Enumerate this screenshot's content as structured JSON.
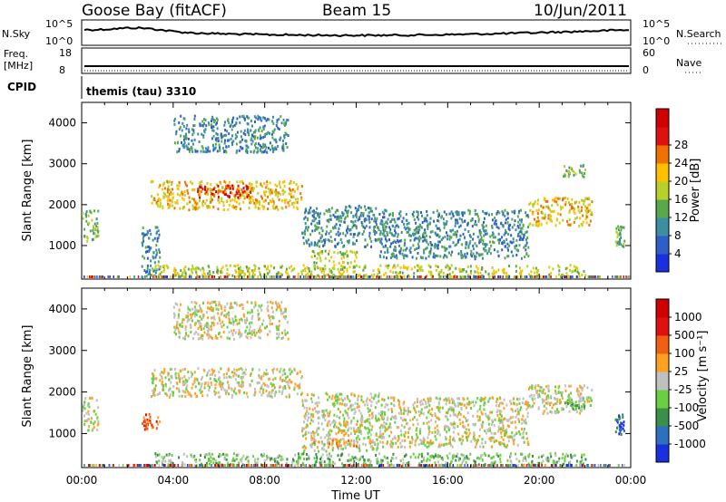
{
  "header": {
    "station": "Goose Bay (fitACF)",
    "beam": "Beam 15",
    "date": "10/Jun/2011"
  },
  "top_panels": {
    "nsky_label": "N.Sky",
    "nsky_ticks": [
      "10^5",
      "10^0"
    ],
    "nsearch_label": "N.Search",
    "nsearch_ticks": [
      "10^5",
      "10^0"
    ],
    "freq_label_line1": "Freq.",
    "freq_label_line2": "[MHz]",
    "freq_ticks": [
      "18",
      "8"
    ],
    "nave_label": "Nave",
    "nave_ticks": [
      "60",
      "0"
    ],
    "cpid_label": "CPID",
    "cpid_text": "themis (tau) 3310"
  },
  "chart_data": [
    {
      "type": "heatmap",
      "name": "power-panel",
      "ylabel": "Slant Range [km]",
      "xlabel": "Time UT",
      "x_ticks": [
        "00:00",
        "04:00",
        "08:00",
        "12:00",
        "16:00",
        "20:00",
        "00:00"
      ],
      "xlim_hours": [
        0,
        24
      ],
      "ylim_km": [
        180,
        4500
      ],
      "y_ticks": [
        1000,
        2000,
        3000,
        4000
      ],
      "colorbar_label": "Power [dB]",
      "colorbar_ticks": [
        "4",
        "8",
        "12",
        "16",
        "20",
        "24",
        "28"
      ],
      "colorbar_colors": [
        "#1a2fe0",
        "#2e5fc8",
        "#3b8fa0",
        "#5aa84c",
        "#b7d12a",
        "#ffc000",
        "#f07000",
        "#e01010",
        "#d00000"
      ],
      "echo_regions": [
        {
          "t": [
            0.0,
            0.7
          ],
          "r": [
            1100,
            1900
          ],
          "level": 3
        },
        {
          "t": [
            2.6,
            3.4
          ],
          "r": [
            200,
            1500
          ],
          "level": 2
        },
        {
          "t": [
            3.0,
            9.6
          ],
          "r": [
            1900,
            2600
          ],
          "level": 5
        },
        {
          "t": [
            5.0,
            7.5
          ],
          "r": [
            2200,
            2500
          ],
          "level": 7
        },
        {
          "t": [
            4.0,
            9.0
          ],
          "r": [
            3300,
            4200
          ],
          "level": 2
        },
        {
          "t": [
            9.6,
            13.0
          ],
          "r": [
            1000,
            2000
          ],
          "level": 2
        },
        {
          "t": [
            10.0,
            12.0
          ],
          "r": [
            600,
            900
          ],
          "level": 4
        },
        {
          "t": [
            13.0,
            19.5
          ],
          "r": [
            700,
            1900
          ],
          "level": 2
        },
        {
          "t": [
            19.5,
            22.3
          ],
          "r": [
            1500,
            2200
          ],
          "level": 5
        },
        {
          "t": [
            21.0,
            22.0
          ],
          "r": [
            2700,
            3000
          ],
          "level": 3
        },
        {
          "t": [
            3.0,
            22.0
          ],
          "r": [
            250,
            550
          ],
          "level": 4
        },
        {
          "t": [
            23.3,
            23.7
          ],
          "r": [
            1000,
            1500
          ],
          "level": 3
        }
      ]
    },
    {
      "type": "heatmap",
      "name": "velocity-panel",
      "ylabel": "Slant Range [km]",
      "xlabel": "Time UT",
      "x_ticks": [
        "00:00",
        "04:00",
        "08:00",
        "12:00",
        "16:00",
        "20:00",
        "00:00"
      ],
      "xlim_hours": [
        0,
        24
      ],
      "ylim_km": [
        180,
        4500
      ],
      "y_ticks": [
        1000,
        2000,
        3000,
        4000
      ],
      "colorbar_label": "Velocity [m s⁻¹]",
      "colorbar_ticks": [
        "1000",
        "500",
        "100",
        "25",
        "-25",
        "-100",
        "-500",
        "-1000"
      ],
      "colorbar_colors": [
        "#1a2fe0",
        "#2e6fc0",
        "#3a8f4a",
        "#6ad040",
        "#c0c0c0",
        "#ffa020",
        "#f06010",
        "#e01010",
        "#d00000"
      ],
      "echo_regions": [
        {
          "t": [
            0.0,
            0.7
          ],
          "r": [
            1100,
            1900
          ],
          "level": 4
        },
        {
          "t": [
            2.6,
            3.4
          ],
          "r": [
            1100,
            1500
          ],
          "level": 6
        },
        {
          "t": [
            3.0,
            9.6
          ],
          "r": [
            1900,
            2600
          ],
          "level": 4
        },
        {
          "t": [
            4.0,
            9.0
          ],
          "r": [
            3300,
            4200
          ],
          "level": 4
        },
        {
          "t": [
            9.6,
            13.0
          ],
          "r": [
            600,
            2000
          ],
          "level": 4
        },
        {
          "t": [
            10.0,
            12.0
          ],
          "r": [
            700,
            900
          ],
          "level": 5
        },
        {
          "t": [
            13.0,
            19.5
          ],
          "r": [
            700,
            1900
          ],
          "level": 4
        },
        {
          "t": [
            19.5,
            22.3
          ],
          "r": [
            1500,
            2200
          ],
          "level": 4
        },
        {
          "t": [
            21.0,
            22.0
          ],
          "r": [
            1600,
            1900
          ],
          "level": 3
        },
        {
          "t": [
            3.0,
            22.0
          ],
          "r": [
            250,
            550
          ],
          "level": 3
        },
        {
          "t": [
            23.3,
            23.7
          ],
          "r": [
            1000,
            1500
          ],
          "level": 1
        }
      ]
    }
  ]
}
